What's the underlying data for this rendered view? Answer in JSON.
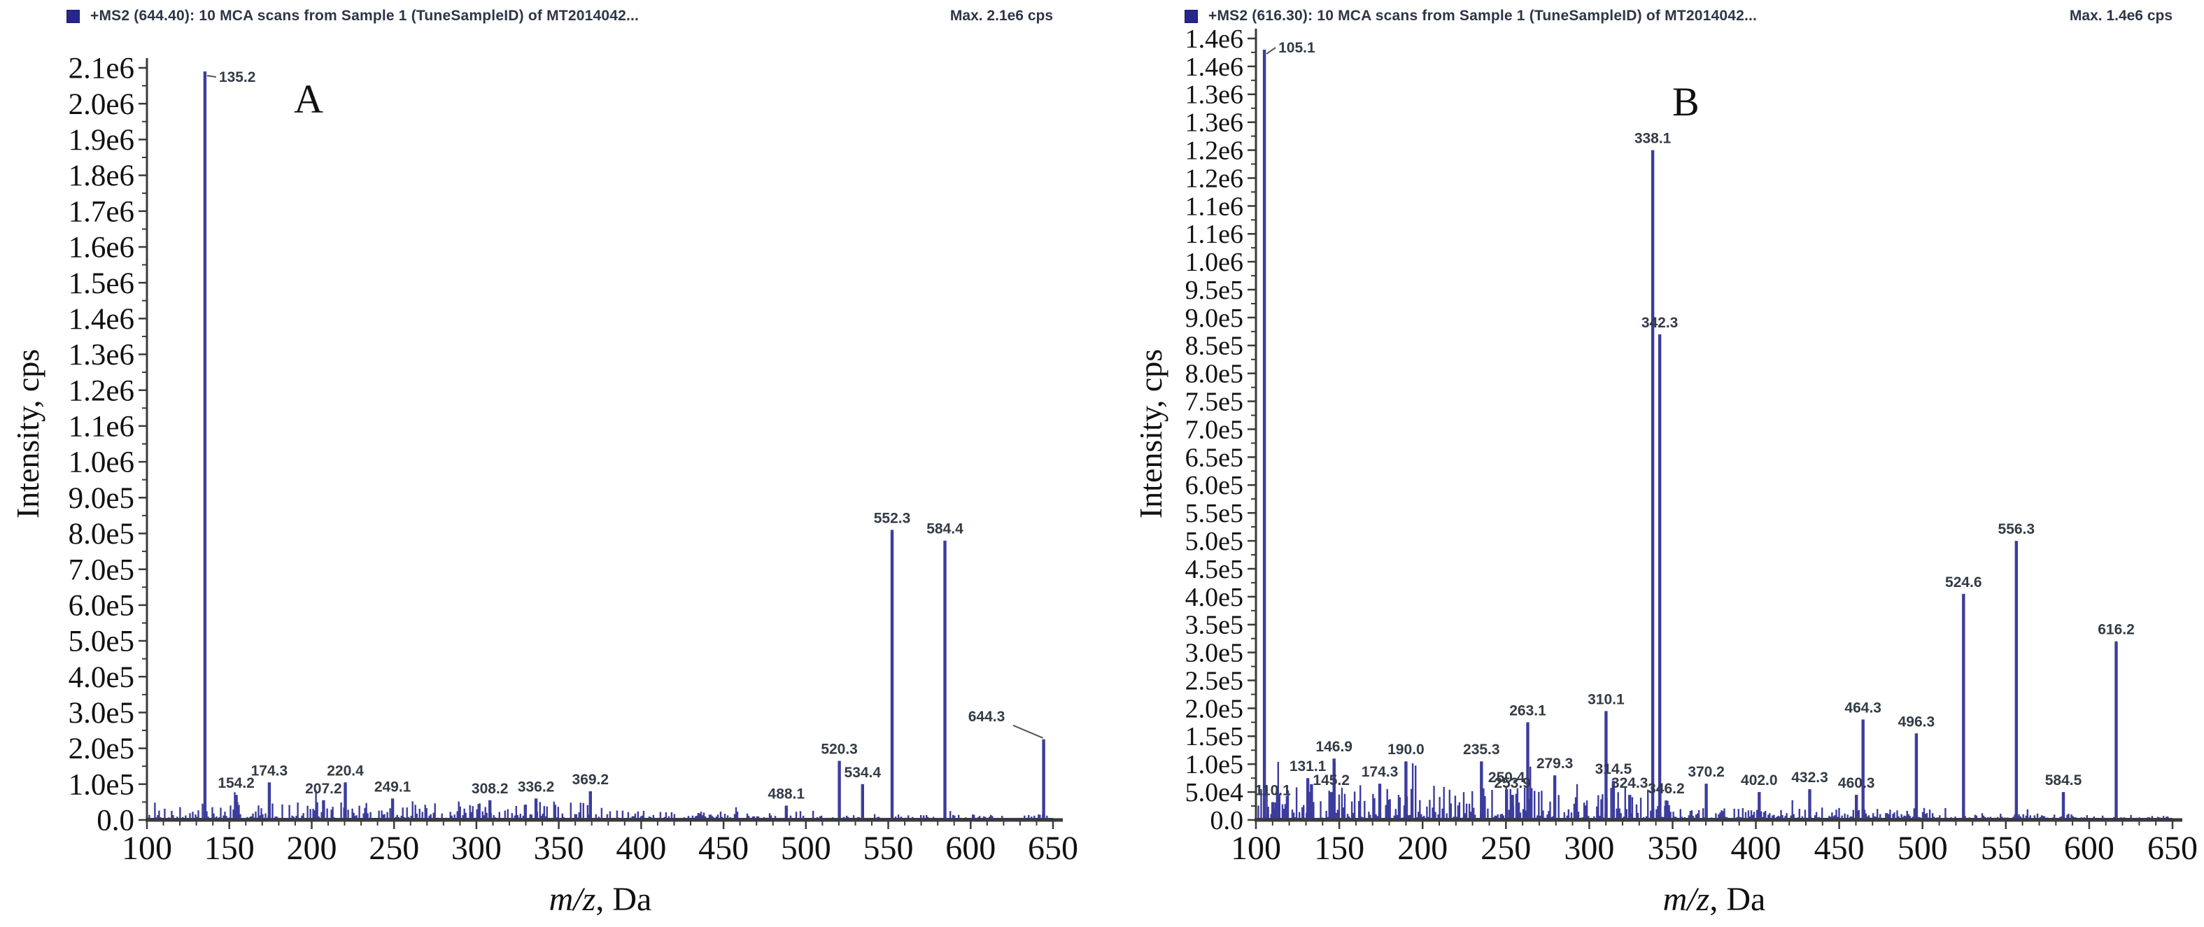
{
  "figure": {
    "background": "#ffffff"
  },
  "panels": [
    {
      "letter": "A",
      "header": {
        "legend_swatch_color": "#26268e",
        "title": "+MS2 (644.40): 10 MCA scans from Sample 1 (TuneSampleID) of MT2014042...",
        "max_label": "Max. 2.1e6 cps"
      },
      "ylabel": "Intensity, cps",
      "xlabel_italic": "m/z",
      "xlabel_suffix": ", Da"
    },
    {
      "letter": "B",
      "header": {
        "legend_swatch_color": "#26268e",
        "title": "+MS2 (616.30): 10 MCA scans from Sample 1 (TuneSampleID) of MT2014042...",
        "max_label": "Max. 1.4e6 cps"
      },
      "ylabel": "Intensity, cps",
      "xlabel_italic": "m/z",
      "xlabel_suffix": ", Da"
    }
  ],
  "chart_data": [
    {
      "type": "bar",
      "panel_label": "A",
      "title": "+MS2 (644.40): 10 MCA scans from Sample 1 (TuneSampleID) of MT2014042...",
      "max_annotation": "Max. 2.1e6 cps",
      "xlabel": "m/z, Da",
      "ylabel": "Intensity, cps",
      "xlim": [
        100,
        650
      ],
      "ylim": [
        0,
        2100000
      ],
      "x_major_ticks": [
        100,
        150,
        200,
        250,
        300,
        350,
        400,
        450,
        500,
        550,
        600,
        650
      ],
      "x_minor_step": 10,
      "y_major_step": 100000,
      "y_minor_step": 50000,
      "y_tick_labels_top_down": [
        "2.1e6",
        "2.0e6",
        "1.9e6",
        "1.8e6",
        "1.7e6",
        "1.6e6",
        "1.5e6",
        "1.4e6",
        "1.3e6",
        "1.2e6",
        "1.1e6",
        "1.0e6",
        "9.0e5",
        "8.0e5",
        "7.0e5",
        "6.0e5",
        "5.0e5",
        "4.0e5",
        "3.0e5",
        "2.0e5",
        "1.0e5",
        "0.0"
      ],
      "grid": false,
      "legend_position": "top-left",
      "bar_color": "#3c3c9e",
      "axis_color": "#3a3a3a",
      "peaks": [
        {
          "mz": 135.2,
          "intensity": 2090000,
          "label": "135.2"
        },
        {
          "mz": 154.2,
          "intensity": 70000,
          "label": "154.2"
        },
        {
          "mz": 174.3,
          "intensity": 105000,
          "label": "174.3"
        },
        {
          "mz": 207.2,
          "intensity": 55000,
          "label": "207.2"
        },
        {
          "mz": 220.4,
          "intensity": 105000,
          "label": "220.4"
        },
        {
          "mz": 249.1,
          "intensity": 60000,
          "label": "249.1"
        },
        {
          "mz": 308.2,
          "intensity": 55000,
          "label": "308.2"
        },
        {
          "mz": 336.2,
          "intensity": 60000,
          "label": "336.2"
        },
        {
          "mz": 369.2,
          "intensity": 80000,
          "label": "369.2"
        },
        {
          "mz": 488.1,
          "intensity": 40000,
          "label": "488.1"
        },
        {
          "mz": 520.3,
          "intensity": 165000,
          "label": "520.3"
        },
        {
          "mz": 534.4,
          "intensity": 100000,
          "label": "534.4"
        },
        {
          "mz": 552.3,
          "intensity": 810000,
          "label": "552.3"
        },
        {
          "mz": 584.4,
          "intensity": 780000,
          "label": "584.4"
        },
        {
          "mz": 644.3,
          "intensity": 225000,
          "label": "644.3"
        }
      ],
      "noise_profile": [
        {
          "from": 100,
          "to": 385,
          "max": 50000
        },
        {
          "from": 385,
          "to": 505,
          "max": 24000
        },
        {
          "from": 505,
          "to": 648,
          "max": 14000
        }
      ],
      "noise_seed": 7,
      "layout": {
        "plot_left": 210,
        "plot_right": 1505,
        "plot_top": 97,
        "axis_y": 1172,
        "ytick_font": 43,
        "xtick_font": 48
      }
    },
    {
      "type": "bar",
      "panel_label": "B",
      "title": "+MS2 (616.30): 10 MCA scans from Sample 1 (TuneSampleID) of MT2014042...",
      "max_annotation": "Max. 1.4e6 cps",
      "xlabel": "m/z, Da",
      "ylabel": "Intensity, cps",
      "xlim": [
        100,
        650
      ],
      "ylim": [
        0,
        1400000
      ],
      "x_major_ticks": [
        100,
        150,
        200,
        250,
        300,
        350,
        400,
        450,
        500,
        550,
        600,
        650
      ],
      "x_minor_step": 10,
      "y_major_step": 50000,
      "y_minor_step": 25000,
      "y_tick_labels_top_down": [
        "1.4e6",
        "1.4e6",
        "1.3e6",
        "1.3e6",
        "1.2e6",
        "1.2e6",
        "1.1e6",
        "1.1e6",
        "1.0e6",
        "9.5e5",
        "9.0e5",
        "8.5e5",
        "8.0e5",
        "7.5e5",
        "7.0e5",
        "6.5e5",
        "6.0e5",
        "5.5e5",
        "5.0e5",
        "4.5e5",
        "4.0e5",
        "3.5e5",
        "3.0e5",
        "2.5e5",
        "2.0e5",
        "1.5e5",
        "1.0e5",
        "5.0e4",
        "0.0"
      ],
      "grid": false,
      "legend_position": "top-left",
      "bar_color": "#3c3c9e",
      "axis_color": "#3a3a3a",
      "peaks": [
        {
          "mz": 105.1,
          "intensity": 1380000,
          "label": "105.1"
        },
        {
          "mz": 110.1,
          "intensity": 32000,
          "label": "110.1"
        },
        {
          "mz": 131.1,
          "intensity": 75000,
          "label": "131.1"
        },
        {
          "mz": 145.2,
          "intensity": 50000,
          "label": "145.2"
        },
        {
          "mz": 146.9,
          "intensity": 110000,
          "label": "146.9"
        },
        {
          "mz": 174.3,
          "intensity": 65000,
          "label": "174.3"
        },
        {
          "mz": 190.0,
          "intensity": 105000,
          "label": "190.0"
        },
        {
          "mz": 235.3,
          "intensity": 105000,
          "label": "235.3"
        },
        {
          "mz": 250.4,
          "intensity": 55000,
          "label": "250.4"
        },
        {
          "mz": 253.9,
          "intensity": 45000,
          "label": "253.9"
        },
        {
          "mz": 263.1,
          "intensity": 175000,
          "label": "263.1"
        },
        {
          "mz": 279.3,
          "intensity": 80000,
          "label": "279.3"
        },
        {
          "mz": 310.1,
          "intensity": 195000,
          "label": "310.1"
        },
        {
          "mz": 314.5,
          "intensity": 70000,
          "label": "314.5"
        },
        {
          "mz": 324.3,
          "intensity": 45000,
          "label": "324.3"
        },
        {
          "mz": 338.1,
          "intensity": 1200000,
          "label": "338.1"
        },
        {
          "mz": 342.3,
          "intensity": 870000,
          "label": "342.3"
        },
        {
          "mz": 346.2,
          "intensity": 35000,
          "label": "346.2"
        },
        {
          "mz": 370.2,
          "intensity": 65000,
          "label": "370.2"
        },
        {
          "mz": 402.0,
          "intensity": 50000,
          "label": "402.0"
        },
        {
          "mz": 432.3,
          "intensity": 55000,
          "label": "432.3"
        },
        {
          "mz": 460.3,
          "intensity": 45000,
          "label": "460.3"
        },
        {
          "mz": 464.3,
          "intensity": 180000,
          "label": "464.3"
        },
        {
          "mz": 496.3,
          "intensity": 155000,
          "label": "496.3"
        },
        {
          "mz": 524.6,
          "intensity": 405000,
          "label": "524.6"
        },
        {
          "mz": 556.3,
          "intensity": 500000,
          "label": "556.3"
        },
        {
          "mz": 584.5,
          "intensity": 50000,
          "label": "584.5"
        },
        {
          "mz": 616.2,
          "intensity": 320000,
          "label": "616.2"
        }
      ],
      "noise_profile": [
        {
          "from": 100,
          "to": 355,
          "max": 62000
        },
        {
          "from": 355,
          "to": 520,
          "max": 20000
        },
        {
          "from": 520,
          "to": 648,
          "max": 10000
        }
      ],
      "noise_seed": 13,
      "layout": {
        "plot_left": 220,
        "plot_right": 1530,
        "plot_top": 55,
        "axis_y": 1172,
        "ytick_font": 38,
        "xtick_font": 48
      }
    }
  ]
}
